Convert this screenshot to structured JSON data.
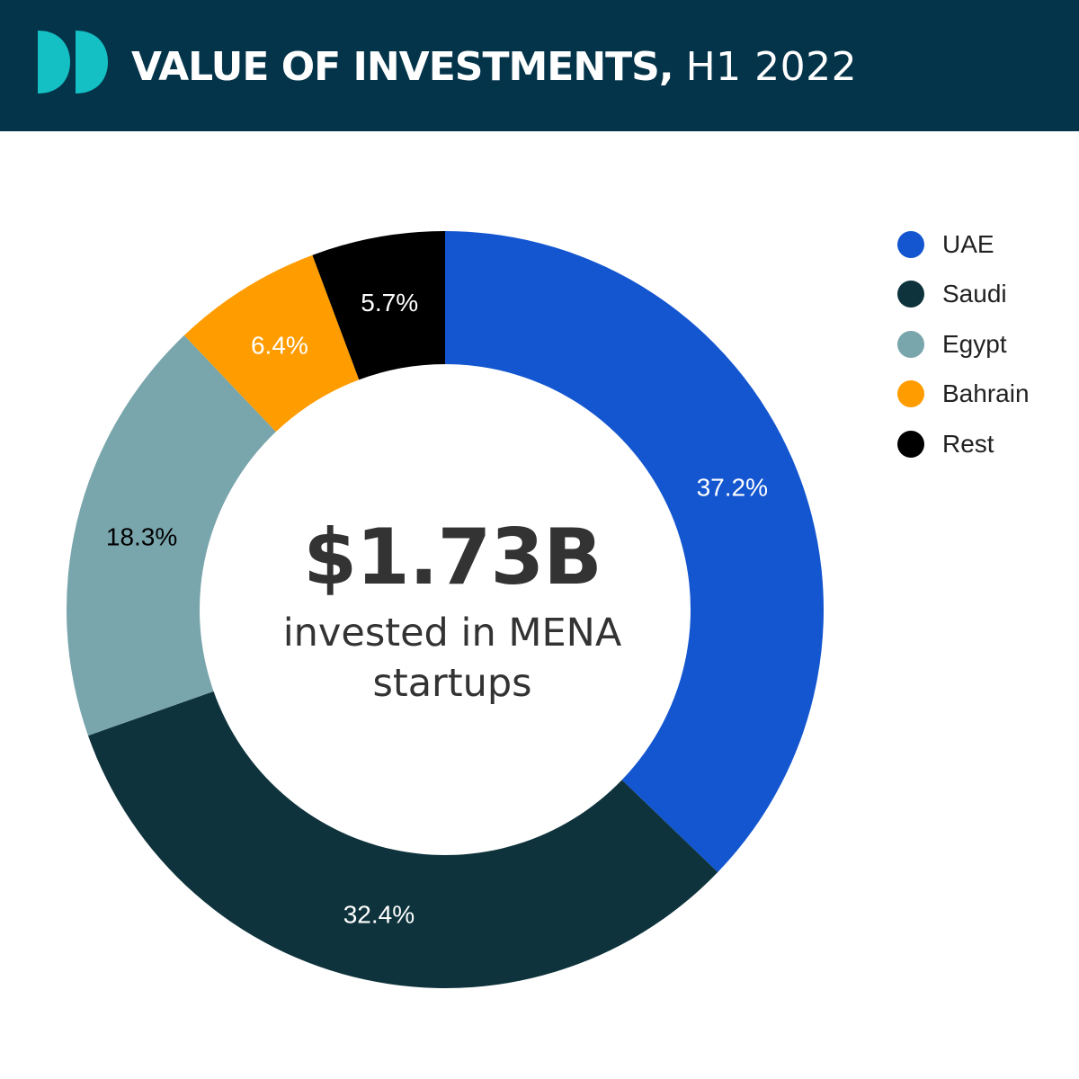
{
  "header": {
    "title_main": "VALUE OF INVESTMENTS,",
    "title_period": "H1 2022"
  },
  "center": {
    "value": "$1.73B",
    "caption": "invested in MENA startups"
  },
  "chart_data": {
    "type": "pie",
    "categories": [
      "UAE",
      "Saudi",
      "Egypt",
      "Bahrain",
      "Rest"
    ],
    "values": [
      37.2,
      32.4,
      18.3,
      6.4,
      5.7
    ],
    "labels": [
      "37.2%",
      "32.4%",
      "18.3%",
      "6.4%",
      "5.7%"
    ],
    "colors": [
      "#1356d0",
      "#0e333c",
      "#79a5ac",
      "#ff9c00",
      "#000000"
    ],
    "label_colors": [
      "#ffffff",
      "#ffffff",
      "#000000",
      "#ffffff",
      "#ffffff"
    ],
    "donut": true,
    "legend_position": "top-right"
  },
  "legend": {
    "items": [
      {
        "label": "UAE",
        "color": "#1356d0"
      },
      {
        "label": "Saudi",
        "color": "#0e333c"
      },
      {
        "label": "Egypt",
        "color": "#79a5ac"
      },
      {
        "label": "Bahrain",
        "color": "#ff9c00"
      },
      {
        "label": "Rest",
        "color": "#000000"
      }
    ]
  },
  "colors": {
    "header_bg": "#04344a",
    "logo": "#14c0c4",
    "center_text": "#333333"
  }
}
